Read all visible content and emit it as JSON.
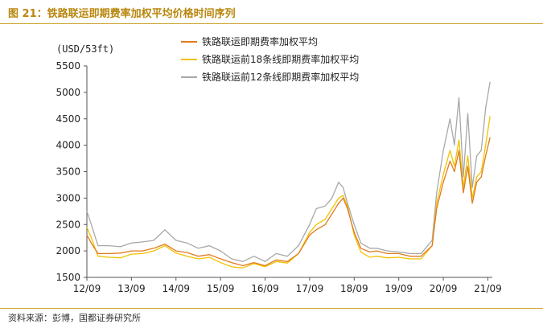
{
  "figure": {
    "title": "图 21：铁路联运即期费率加权平均价格时间序列",
    "source": "资料来源：彭博，国都证券研究所"
  },
  "colors": {
    "title": "#b8860b",
    "rule": "#c9a227",
    "series_orange": "#e07b1f",
    "series_yellow": "#f2c200",
    "series_gray": "#a8a8a8"
  },
  "chart_data": {
    "type": "line",
    "unit_label": "(USD/53ft)",
    "ylim": [
      1500,
      5500
    ],
    "yticks": [
      1500,
      2000,
      2500,
      3000,
      3500,
      4000,
      4500,
      5000,
      5500
    ],
    "xlim": [
      2012.75,
      2021.85
    ],
    "xticks": [
      {
        "value": 2012.75,
        "label": "12/09"
      },
      {
        "value": 2013.75,
        "label": "13/09"
      },
      {
        "value": 2014.75,
        "label": "14/09"
      },
      {
        "value": 2015.75,
        "label": "15/09"
      },
      {
        "value": 2016.75,
        "label": "16/09"
      },
      {
        "value": 2017.75,
        "label": "17/09"
      },
      {
        "value": 2018.75,
        "label": "18/09"
      },
      {
        "value": 2019.75,
        "label": "19/09"
      },
      {
        "value": 2020.75,
        "label": "20/09"
      },
      {
        "value": 2021.75,
        "label": "21/09"
      }
    ],
    "x": [
      2012.75,
      2012.85,
      2013.0,
      2013.25,
      2013.5,
      2013.75,
      2014.0,
      2014.25,
      2014.5,
      2014.75,
      2015.0,
      2015.25,
      2015.5,
      2015.75,
      2016.0,
      2016.25,
      2016.5,
      2016.75,
      2017.0,
      2017.25,
      2017.5,
      2017.75,
      2017.9,
      2018.1,
      2018.25,
      2018.4,
      2018.5,
      2018.6,
      2018.75,
      2018.9,
      2019.1,
      2019.25,
      2019.5,
      2019.75,
      2020.0,
      2020.25,
      2020.5,
      2020.6,
      2020.75,
      2020.9,
      2021.0,
      2021.1,
      2021.2,
      2021.3,
      2021.4,
      2021.5,
      2021.6,
      2021.7,
      2021.8
    ],
    "series": [
      {
        "name": "铁路联运即期费率加权平均",
        "color": "#e07b1f",
        "values": [
          2300,
          2150,
          1950,
          1950,
          1960,
          2000,
          2000,
          2050,
          2130,
          2000,
          1970,
          1900,
          1930,
          1850,
          1780,
          1720,
          1780,
          1720,
          1830,
          1800,
          1950,
          2300,
          2400,
          2500,
          2700,
          2900,
          3000,
          2800,
          2350,
          2050,
          1980,
          2000,
          1950,
          1950,
          1900,
          1900,
          2100,
          2800,
          3300,
          3700,
          3500,
          3900,
          3100,
          3600,
          2900,
          3300,
          3400,
          3800,
          4150
        ]
      },
      {
        "name": "铁路联运前18条线即期费率加权平均",
        "color": "#f2c200",
        "values": [
          2450,
          2250,
          1900,
          1880,
          1870,
          1940,
          1950,
          2000,
          2100,
          1960,
          1900,
          1850,
          1880,
          1780,
          1700,
          1680,
          1760,
          1700,
          1800,
          1770,
          1950,
          2350,
          2500,
          2600,
          2800,
          3000,
          3050,
          2850,
          2300,
          1980,
          1880,
          1900,
          1870,
          1880,
          1850,
          1850,
          2100,
          2900,
          3450,
          3900,
          3600,
          4100,
          3200,
          3800,
          3000,
          3400,
          3500,
          4000,
          4550
        ]
      },
      {
        "name": "铁路联运前12条线即期费率加权平均",
        "color": "#a8a8a8",
        "values": [
          2750,
          2500,
          2100,
          2100,
          2080,
          2150,
          2170,
          2200,
          2400,
          2200,
          2150,
          2050,
          2100,
          2000,
          1850,
          1800,
          1900,
          1800,
          1950,
          1900,
          2100,
          2500,
          2800,
          2850,
          3000,
          3300,
          3200,
          2900,
          2500,
          2150,
          2050,
          2050,
          2000,
          1980,
          1950,
          1950,
          2200,
          3100,
          3900,
          4500,
          4000,
          4900,
          3400,
          4600,
          3200,
          3800,
          3900,
          4700,
          5200
        ]
      }
    ]
  }
}
